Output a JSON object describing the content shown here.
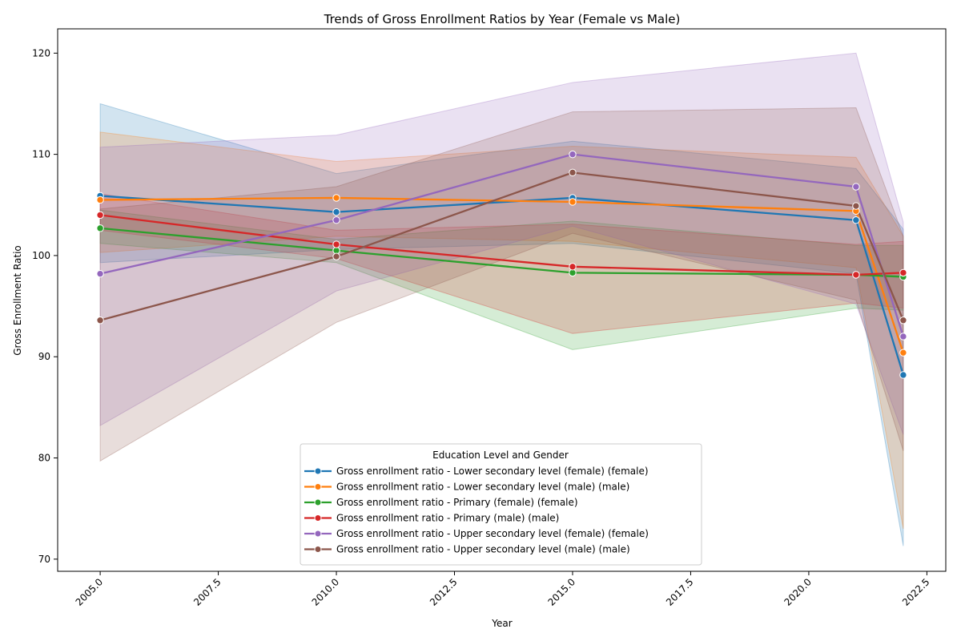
{
  "chart_data": {
    "type": "line",
    "title": "Trends of Gross Enrollment Ratios by Year (Female vs Male)",
    "xlabel": "Year",
    "ylabel": "Gross Enrollment Ratio",
    "xlim": [
      2004.1,
      2022.9
    ],
    "ylim": [
      68.8,
      122.4
    ],
    "x_ticks": [
      2005.0,
      2007.5,
      2010.0,
      2012.5,
      2015.0,
      2017.5,
      2020.0,
      2022.5
    ],
    "x_tick_labels": [
      "2005.0",
      "2007.5",
      "2010.0",
      "2012.5",
      "2015.0",
      "2017.5",
      "2020.0",
      "2022.5"
    ],
    "y_ticks": [
      70,
      80,
      90,
      100,
      110,
      120
    ],
    "y_tick_labels": [
      "70",
      "80",
      "90",
      "100",
      "110",
      "120"
    ],
    "x": [
      2005,
      2010,
      2015,
      2021,
      2022
    ],
    "legend_title": "Education Level and Gender",
    "legend_position": "lower-center",
    "series": [
      {
        "name": "Gross enrollment ratio - Lower secondary level (female) (female)",
        "color": "#1f77b4",
        "values": [
          105.9,
          104.3,
          105.7,
          103.5,
          88.2
        ],
        "lower": [
          99.3,
          100.6,
          101.2,
          98.2,
          71.3
        ],
        "upper": [
          115.0,
          108.1,
          111.3,
          108.6,
          102.6
        ]
      },
      {
        "name": "Gross enrollment ratio - Lower secondary level (male) (male)",
        "color": "#ff7f0e",
        "values": [
          105.5,
          105.7,
          105.3,
          104.4,
          90.4
        ],
        "lower": [
          100.3,
          101.9,
          101.4,
          98.8,
          73.0
        ],
        "upper": [
          112.2,
          109.3,
          110.8,
          109.7,
          101.9
        ]
      },
      {
        "name": "Gross enrollment ratio - Primary (female) (female)",
        "color": "#2ca02c",
        "values": [
          102.7,
          100.5,
          98.3,
          98.1,
          97.9
        ],
        "lower": [
          101.2,
          99.3,
          90.7,
          94.8,
          94.6
        ],
        "upper": [
          104.5,
          101.6,
          103.4,
          101.0,
          101.0
        ]
      },
      {
        "name": "Gross enrollment ratio - Primary (male) (male)",
        "color": "#d62728",
        "values": [
          104.0,
          101.1,
          98.9,
          98.1,
          98.3
        ],
        "lower": [
          102.5,
          99.7,
          92.3,
          95.3,
          94.8
        ],
        "upper": [
          106.1,
          102.5,
          103.1,
          101.1,
          101.4
        ]
      },
      {
        "name": "Gross enrollment ratio - Upper secondary level (female) (female)",
        "color": "#9467bd",
        "values": [
          98.2,
          103.5,
          110.0,
          106.8,
          92.0
        ],
        "lower": [
          83.2,
          96.5,
          102.9,
          95.2,
          82.3
        ],
        "upper": [
          110.7,
          111.9,
          117.1,
          120.0,
          103.3
        ]
      },
      {
        "name": "Gross enrollment ratio - Upper secondary level (male) (male)",
        "color": "#8c564b",
        "values": [
          93.6,
          99.9,
          108.2,
          104.9,
          93.6
        ],
        "lower": [
          79.7,
          93.4,
          102.2,
          95.6,
          80.7
        ],
        "upper": [
          104.6,
          106.8,
          114.2,
          114.6,
          101.9
        ]
      }
    ]
  }
}
